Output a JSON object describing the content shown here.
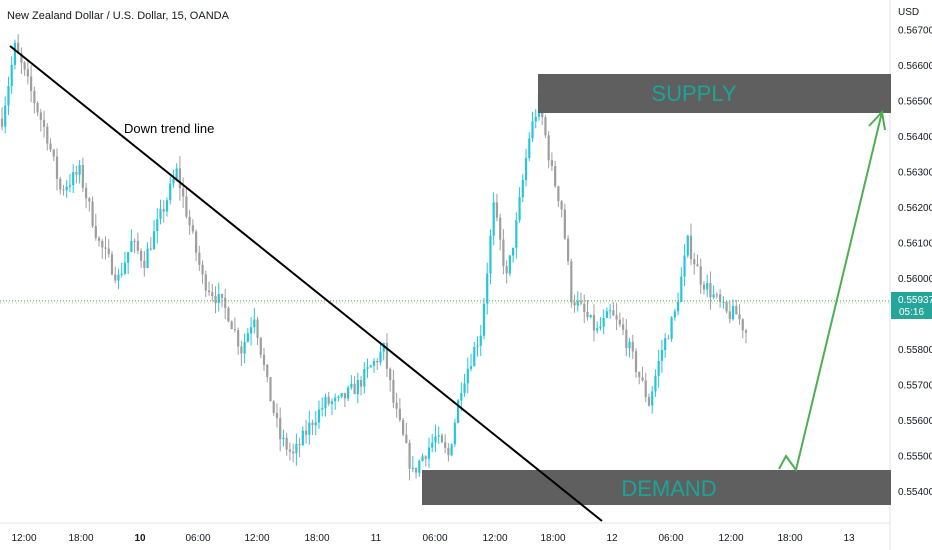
{
  "chart_title": "New Zealand Dollar / U.S. Dollar, 15, OANDA",
  "currency_label": "USD",
  "current_price": {
    "value": "0.55937",
    "countdown": "05:16",
    "color": "#26a69a"
  },
  "colors": {
    "up": "#26c6da",
    "down": "#9e9e9e",
    "zone": "#5f5f5f",
    "zone_text": "#1aa597",
    "trend_line": "#000000",
    "arrow": "#4caf50"
  },
  "annotations": {
    "trend_label": "Down trend line",
    "supply_label": "SUPPLY",
    "demand_label": "DEMAND"
  },
  "chart_data": {
    "type": "candlestick",
    "title": "New Zealand Dollar / U.S. Dollar, 15, OANDA",
    "y_unit": "USD",
    "ylim": [
      0.55365,
      0.5672
    ],
    "y_ticks": [
      "0.56700",
      "0.56600",
      "0.56500",
      "0.56400",
      "0.56300",
      "0.56200",
      "0.56100",
      "0.56000",
      "0.55800",
      "0.55700",
      "0.55600",
      "0.55500",
      "0.55400"
    ],
    "x_ticks": [
      {
        "label": "12:00",
        "bold": false
      },
      {
        "label": "18:00",
        "bold": false
      },
      {
        "label": "10",
        "bold": true
      },
      {
        "label": "06:00",
        "bold": false
      },
      {
        "label": "12:00",
        "bold": false
      },
      {
        "label": "18:00",
        "bold": false
      },
      {
        "label": "11",
        "bold": false
      },
      {
        "label": "06:00",
        "bold": false
      },
      {
        "label": "12:00",
        "bold": false
      },
      {
        "label": "18:00",
        "bold": false
      },
      {
        "label": "12",
        "bold": false
      },
      {
        "label": "06:00",
        "bold": false
      },
      {
        "label": "12:00",
        "bold": false
      },
      {
        "label": "18:00",
        "bold": false
      },
      {
        "label": "13",
        "bold": false
      }
    ],
    "price_path": [
      [
        0,
        0.5645
      ],
      [
        4,
        0.5665
      ],
      [
        10,
        0.565
      ],
      [
        14,
        0.564
      ],
      [
        18,
        0.5625
      ],
      [
        24,
        0.563
      ],
      [
        30,
        0.561
      ],
      [
        36,
        0.56
      ],
      [
        40,
        0.561
      ],
      [
        44,
        0.5605
      ],
      [
        50,
        0.562
      ],
      [
        54,
        0.563
      ],
      [
        58,
        0.5615
      ],
      [
        62,
        0.56
      ],
      [
        66,
        0.5595
      ],
      [
        70,
        0.559
      ],
      [
        74,
        0.558
      ],
      [
        78,
        0.559
      ],
      [
        82,
        0.557
      ],
      [
        86,
        0.5555
      ],
      [
        90,
        0.555
      ],
      [
        96,
        0.556
      ],
      [
        100,
        0.5565
      ],
      [
        104,
        0.5565
      ],
      [
        110,
        0.557
      ],
      [
        114,
        0.5575
      ],
      [
        118,
        0.558
      ],
      [
        121,
        0.5565
      ],
      [
        124,
        0.5555
      ],
      [
        127,
        0.5545
      ],
      [
        130,
        0.555
      ],
      [
        134,
        0.5555
      ],
      [
        138,
        0.555
      ],
      [
        142,
        0.557
      ],
      [
        148,
        0.5585
      ],
      [
        152,
        0.562
      ],
      [
        156,
        0.56
      ],
      [
        159,
        0.5615
      ],
      [
        163,
        0.564
      ],
      [
        166,
        0.565
      ],
      [
        170,
        0.563
      ],
      [
        173,
        0.562
      ],
      [
        176,
        0.5595
      ],
      [
        180,
        0.559
      ],
      [
        184,
        0.5585
      ],
      [
        188,
        0.559
      ],
      [
        192,
        0.5585
      ],
      [
        196,
        0.5575
      ],
      [
        200,
        0.5565
      ],
      [
        204,
        0.558
      ],
      [
        208,
        0.559
      ],
      [
        212,
        0.561
      ],
      [
        216,
        0.56
      ],
      [
        220,
        0.5595
      ],
      [
        224,
        0.559
      ],
      [
        227,
        0.559
      ],
      [
        230,
        0.5585
      ]
    ],
    "down_trend_line": {
      "from": [
        0,
        0.5668
      ],
      "to": [
        2.15,
        0.5533
      ],
      "label": "Down trend line"
    },
    "supply_zone": {
      "label": "SUPPLY",
      "low": 0.56465,
      "high": 0.56575,
      "x_from": "Day 11 14:40",
      "x_to": "Day 13 12:00"
    },
    "demand_zone": {
      "label": "DEMAND",
      "low": 0.55365,
      "high": 0.55465,
      "x_from": "Day 11 04:40",
      "x_to": "Day 13 12:00"
    },
    "projection_arrow": {
      "points": [
        [
          0.55495
        ],
        [
          0.5547
        ],
        [
          0.5647
        ]
      ]
    },
    "grid": false
  }
}
